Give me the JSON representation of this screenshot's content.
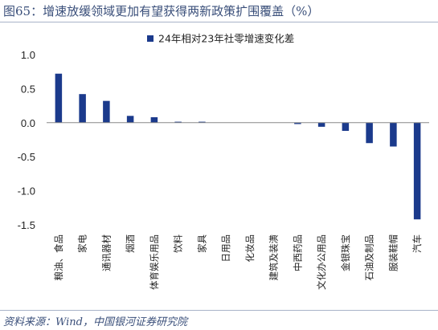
{
  "header": {
    "title": "图65：增速放缓领域更加有望获得两新政策扩围覆盖（%）"
  },
  "footer": {
    "source": "资料来源：Wind，中国银河证券研究院"
  },
  "chart_data": {
    "type": "bar",
    "categories": [
      "粮油、食品",
      "家电",
      "通讯器材",
      "烟酒",
      "体育娱乐用品",
      "饮料",
      "家具",
      "日用品",
      "化妆品",
      "建筑及装潢",
      "中西药品",
      "文化办公用品",
      "金银珠宝",
      "石油及制品",
      "服装鞋帽",
      "汽车"
    ],
    "series": [
      {
        "name": "24年相对23年社零增速变化差",
        "values": [
          0.72,
          0.42,
          0.32,
          0.1,
          0.08,
          0.01,
          0.01,
          0.0,
          0.0,
          0.0,
          -0.02,
          -0.06,
          -0.12,
          -0.3,
          -0.35,
          -1.42
        ],
        "color": "#1b3a8c"
      }
    ],
    "yticks": [
      "1.0",
      "0.5",
      "0.0",
      "-0.5",
      "-1.0",
      "-1.5"
    ],
    "ylim": [
      -1.5,
      1.0
    ],
    "grid": false,
    "legend_position": "top-center",
    "xlabel": "",
    "ylabel": ""
  }
}
